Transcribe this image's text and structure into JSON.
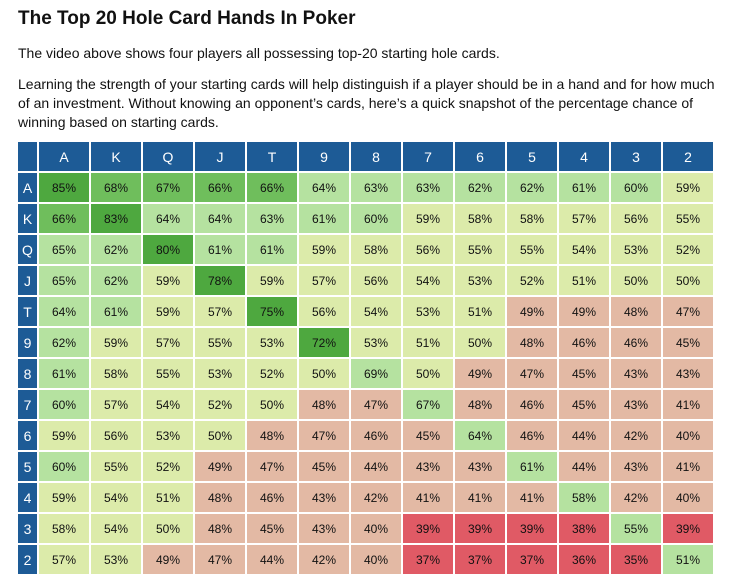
{
  "article": {
    "title": "The Top 20 Hole Card Hands In Poker",
    "intro": "The video above shows four players all possessing top-20 starting hole cards.",
    "body": "Learning the strength of your starting cards will help distinguish if a player should be in a hand and for how much of an investment. Without knowing an opponent’s cards, here’s a quick snapshot of the percentage chance of winning based on starting cards."
  },
  "table": {
    "ranks": [
      "A",
      "K",
      "Q",
      "J",
      "T",
      "9",
      "8",
      "7",
      "6",
      "5",
      "4",
      "3",
      "2"
    ],
    "rows": [
      [
        "85%",
        "68%",
        "67%",
        "66%",
        "66%",
        "64%",
        "63%",
        "63%",
        "62%",
        "62%",
        "61%",
        "60%",
        "59%"
      ],
      [
        "66%",
        "83%",
        "64%",
        "64%",
        "63%",
        "61%",
        "60%",
        "59%",
        "58%",
        "58%",
        "57%",
        "56%",
        "55%"
      ],
      [
        "65%",
        "62%",
        "80%",
        "61%",
        "61%",
        "59%",
        "58%",
        "56%",
        "55%",
        "55%",
        "54%",
        "53%",
        "52%"
      ],
      [
        "65%",
        "62%",
        "59%",
        "78%",
        "59%",
        "57%",
        "56%",
        "54%",
        "53%",
        "52%",
        "51%",
        "50%",
        "50%"
      ],
      [
        "64%",
        "61%",
        "59%",
        "57%",
        "75%",
        "56%",
        "54%",
        "53%",
        "51%",
        "49%",
        "49%",
        "48%",
        "47%"
      ],
      [
        "62%",
        "59%",
        "57%",
        "55%",
        "53%",
        "72%",
        "53%",
        "51%",
        "50%",
        "48%",
        "46%",
        "46%",
        "45%"
      ],
      [
        "61%",
        "58%",
        "55%",
        "53%",
        "52%",
        "50%",
        "69%",
        "50%",
        "49%",
        "47%",
        "45%",
        "43%",
        "43%"
      ],
      [
        "60%",
        "57%",
        "54%",
        "52%",
        "50%",
        "48%",
        "47%",
        "67%",
        "48%",
        "46%",
        "45%",
        "43%",
        "41%"
      ],
      [
        "59%",
        "56%",
        "53%",
        "50%",
        "48%",
        "47%",
        "46%",
        "45%",
        "64%",
        "46%",
        "44%",
        "42%",
        "40%"
      ],
      [
        "60%",
        "55%",
        "52%",
        "49%",
        "47%",
        "45%",
        "44%",
        "43%",
        "43%",
        "61%",
        "44%",
        "43%",
        "41%"
      ],
      [
        "59%",
        "54%",
        "51%",
        "48%",
        "46%",
        "43%",
        "42%",
        "41%",
        "41%",
        "41%",
        "58%",
        "42%",
        "40%"
      ],
      [
        "58%",
        "54%",
        "50%",
        "48%",
        "45%",
        "43%",
        "40%",
        "39%",
        "39%",
        "39%",
        "38%",
        "55%",
        "39%"
      ],
      [
        "57%",
        "53%",
        "49%",
        "47%",
        "44%",
        "42%",
        "40%",
        "37%",
        "37%",
        "37%",
        "36%",
        "35%",
        "51%"
      ]
    ],
    "colors": {
      "header": "#1d5b96",
      "dark_green": "#4ea83f",
      "mid_green": "#6fbe5c",
      "light_green": "#b5e2a0",
      "yellow_green": "#dcebaa",
      "salmon": "#e3b9a4",
      "red": "#e05a65"
    }
  }
}
